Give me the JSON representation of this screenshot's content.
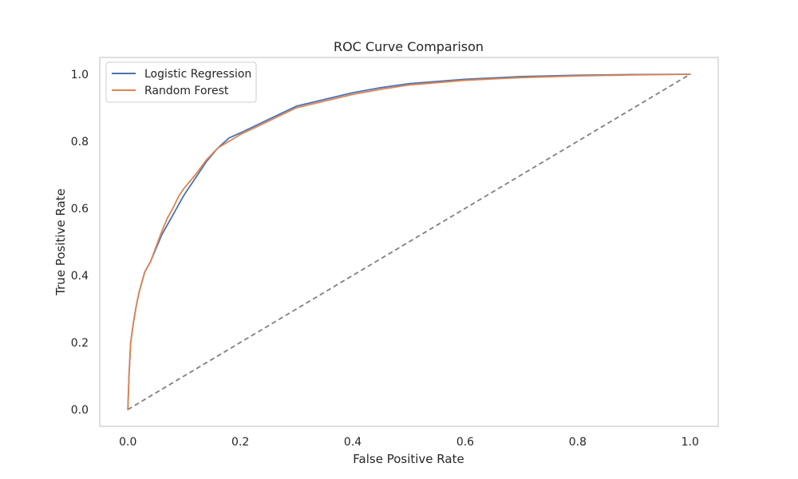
{
  "chart_data": {
    "type": "line",
    "title": "ROC Curve Comparison",
    "xlabel": "False Positive Rate",
    "ylabel": "True Positive Rate",
    "xlim": [
      -0.05,
      1.05
    ],
    "ylim": [
      -0.05,
      1.05
    ],
    "xticks": [
      "0.0",
      "0.2",
      "0.4",
      "0.6",
      "0.8",
      "1.0"
    ],
    "yticks": [
      "0.0",
      "0.2",
      "0.4",
      "0.6",
      "0.8",
      "1.0"
    ],
    "grid": false,
    "legend_position": "top-left",
    "series": [
      {
        "name": "Logistic Regression",
        "color": "#4c72b0",
        "x": [
          0.0,
          0.002,
          0.005,
          0.01,
          0.015,
          0.02,
          0.03,
          0.04,
          0.05,
          0.06,
          0.07,
          0.08,
          0.09,
          0.1,
          0.12,
          0.14,
          0.16,
          0.18,
          0.2,
          0.25,
          0.3,
          0.35,
          0.4,
          0.45,
          0.5,
          0.6,
          0.7,
          0.8,
          0.9,
          1.0
        ],
        "y": [
          0.0,
          0.1,
          0.2,
          0.26,
          0.31,
          0.35,
          0.41,
          0.44,
          0.48,
          0.52,
          0.55,
          0.58,
          0.61,
          0.64,
          0.69,
          0.74,
          0.78,
          0.81,
          0.825,
          0.865,
          0.905,
          0.925,
          0.945,
          0.96,
          0.972,
          0.985,
          0.993,
          0.997,
          0.999,
          1.0
        ]
      },
      {
        "name": "Random Forest",
        "color": "#dd8452",
        "x": [
          0.0,
          0.002,
          0.005,
          0.01,
          0.015,
          0.02,
          0.03,
          0.04,
          0.05,
          0.06,
          0.07,
          0.08,
          0.09,
          0.1,
          0.12,
          0.14,
          0.16,
          0.18,
          0.2,
          0.25,
          0.3,
          0.35,
          0.4,
          0.45,
          0.5,
          0.6,
          0.7,
          0.8,
          0.9,
          1.0
        ],
        "y": [
          0.0,
          0.1,
          0.2,
          0.26,
          0.31,
          0.35,
          0.41,
          0.44,
          0.485,
          0.53,
          0.57,
          0.6,
          0.635,
          0.66,
          0.7,
          0.745,
          0.78,
          0.8,
          0.82,
          0.86,
          0.9,
          0.92,
          0.94,
          0.955,
          0.968,
          0.982,
          0.99,
          0.995,
          0.998,
          1.0
        ]
      }
    ],
    "reference_line": {
      "x": [
        0.0,
        1.0
      ],
      "y": [
        0.0,
        1.0
      ],
      "color": "#808080",
      "style": "dashed"
    }
  }
}
